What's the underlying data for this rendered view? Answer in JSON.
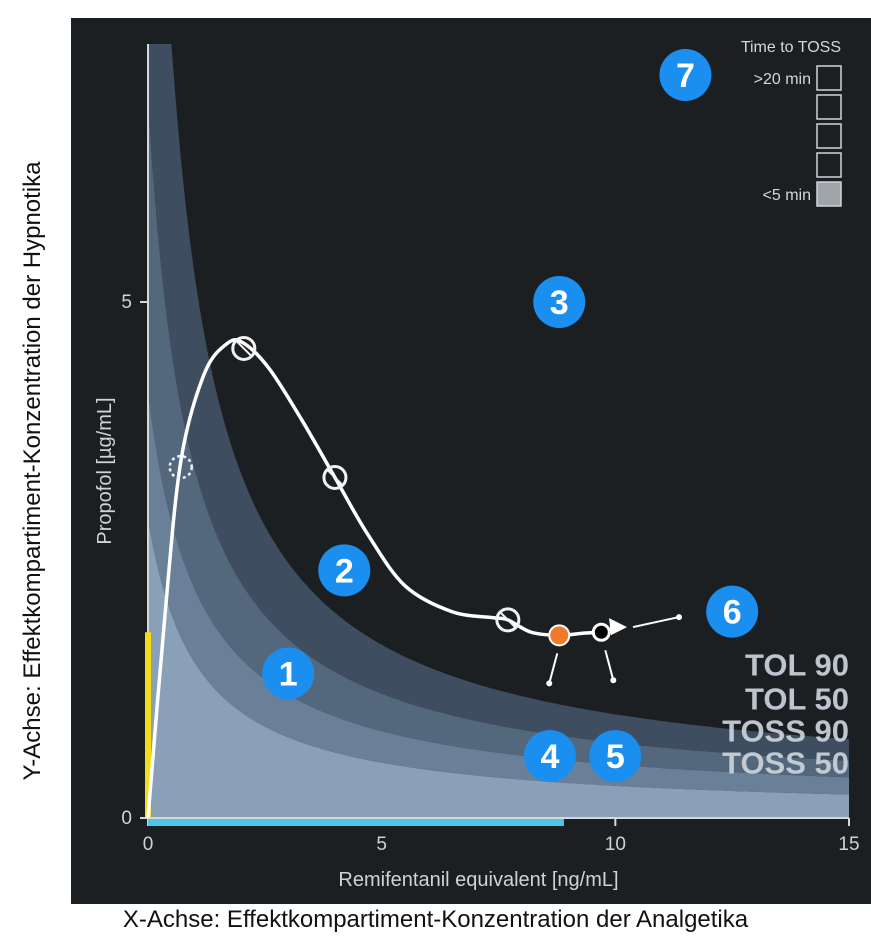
{
  "outer_labels": {
    "y": "Y-Achse: Effektkompartiment-Konzentration der Hypnotika",
    "x": "X-Achse: Effektkompartiment-Konzentration der Analgetika"
  },
  "colors": {
    "panel": "#1c1f22",
    "band_tol90": "#3e4d5f",
    "band_tol50": "#53677d",
    "band_toss90": "#6a8099",
    "band_toss50": "#8aa0b8",
    "trajectory": "#ffffff",
    "current_point": "#f07a2a",
    "predicted_point": "#000000",
    "propofol_bar": "#f3dc1a",
    "remi_bar": "#4cc8e6",
    "badge": "#1b8ff0"
  },
  "chart_data": {
    "type": "line",
    "xlabel": "Remifentanil equivalent [ng/mL]",
    "ylabel": "Propofol [µg/mL]",
    "xlim": [
      0,
      15
    ],
    "ylim": [
      0,
      7.5
    ],
    "x_ticks": [
      "0",
      "5",
      "10",
      "15"
    ],
    "y_ticks": [
      "0",
      "5"
    ],
    "band_labels": [
      "TOL 90",
      "TOL 50",
      "TOSS 90",
      "TOSS 50"
    ],
    "trajectory": {
      "x": [
        0,
        0.35,
        0.7,
        1.2,
        1.7,
        2.05,
        2.6,
        3.3,
        4.0,
        4.7,
        5.5,
        6.5,
        7.4,
        7.7,
        8.2,
        8.8,
        9.3,
        9.7
      ],
      "y": [
        0,
        1.9,
        3.45,
        4.3,
        4.6,
        4.6,
        4.35,
        3.85,
        3.3,
        2.75,
        2.25,
        2.0,
        1.94,
        1.92,
        1.8,
        1.77,
        1.79,
        1.8
      ]
    },
    "marked_points": [
      {
        "x": 0.7,
        "y": 3.4,
        "kind": "dashed"
      },
      {
        "x": 2.05,
        "y": 4.55,
        "kind": "open"
      },
      {
        "x": 4.0,
        "y": 3.3,
        "kind": "open"
      },
      {
        "x": 7.7,
        "y": 1.92,
        "kind": "open"
      },
      {
        "x": 8.8,
        "y": 1.77,
        "kind": "current"
      },
      {
        "x": 9.7,
        "y": 1.8,
        "kind": "predicted"
      }
    ],
    "arrow_tip": {
      "x": 10.25,
      "y": 1.85
    },
    "propofol_bar_value": 1.8,
    "remi_bar_value": 8.9,
    "legend": {
      "title": "Time to TOSS",
      "top_label": ">20 min",
      "bottom_label": "<5 min",
      "boxes": 5,
      "filled_index": 4
    },
    "annotations": [
      {
        "label": "1",
        "x": 3.0,
        "y": 1.4
      },
      {
        "label": "2",
        "x": 4.2,
        "y": 2.4
      },
      {
        "label": "3",
        "x": 8.8,
        "y": 5.0
      },
      {
        "label": "4",
        "x": 8.6,
        "y": 0.6
      },
      {
        "label": "5",
        "x": 10.0,
        "y": 0.6
      },
      {
        "label": "6",
        "x": 12.5,
        "y": 2.0
      },
      {
        "label": "7",
        "x": 11.5,
        "y": 7.2
      }
    ],
    "grid": false,
    "legend_position": "top-right"
  }
}
